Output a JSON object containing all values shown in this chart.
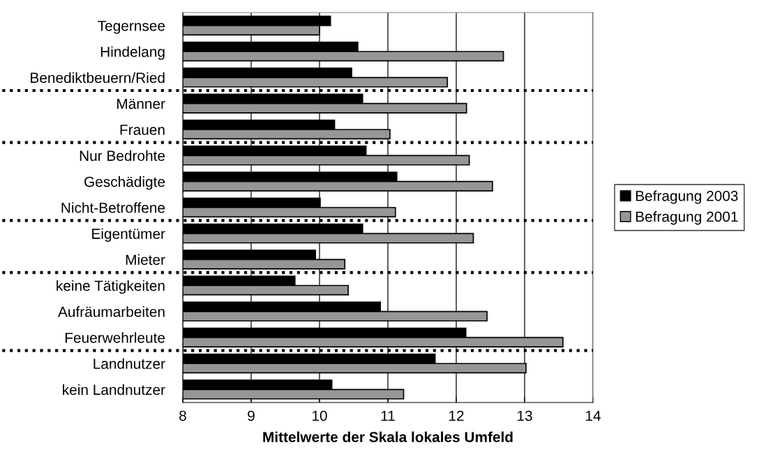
{
  "chart_data": {
    "type": "bar",
    "orientation": "horizontal",
    "xlabel": "Mittelwerte der Skala lokales Umfeld",
    "categories": [
      "Tegernsee",
      "Hindelang",
      "Benediktbeuern/Ried",
      "Männer",
      "Frauen",
      "Nur Bedrohte",
      "Geschädigte",
      "Nicht-Betroffene",
      "Eigentümer",
      "Mieter",
      "keine Tätigkeiten",
      "Aufräumarbeiten",
      "Feuerwehrleute",
      "Landnutzer",
      "kein Landnutzer"
    ],
    "series": [
      {
        "name": "Befragung 2003",
        "color": "#000000",
        "values": [
          10.16,
          10.56,
          10.47,
          10.63,
          10.22,
          10.68,
          11.13,
          10.01,
          10.63,
          9.94,
          9.64,
          10.89,
          12.14,
          11.69,
          10.18
        ]
      },
      {
        "name": "Befragung 2001",
        "color": "#969696",
        "values": [
          10.0,
          12.69,
          11.87,
          12.15,
          11.03,
          12.19,
          12.53,
          11.11,
          12.25,
          10.37,
          10.42,
          12.45,
          13.56,
          13.02,
          11.23
        ]
      }
    ],
    "xlim": [
      8,
      14
    ],
    "xticks": [
      8,
      9,
      10,
      11,
      12,
      13,
      14
    ],
    "grid": "x",
    "legend": "right"
  }
}
